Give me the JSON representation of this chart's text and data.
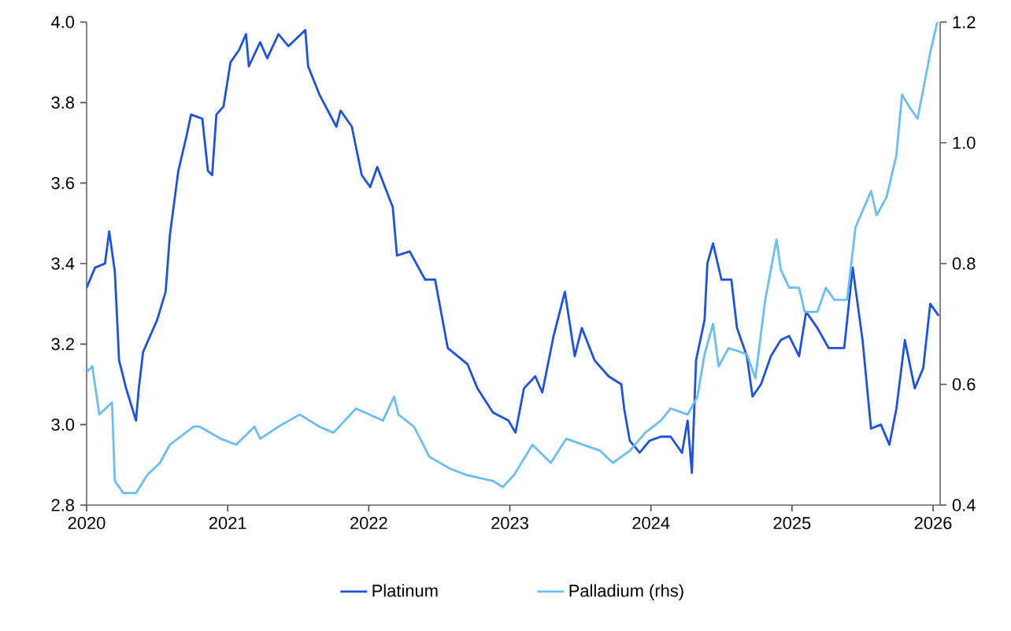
{
  "chart_data": {
    "type": "line",
    "legend": "bottom",
    "xlim": [
      2020,
      2026.05
    ],
    "xticks": [
      2020,
      2021,
      2022,
      2023,
      2024,
      2025,
      2026
    ],
    "ylim": [
      2.8,
      4.0
    ],
    "yticks": [
      2.8,
      {
        "value": 3,
        "label": "3.0"
      },
      3.2,
      3.4,
      3.6,
      3.8,
      {
        "value": 4,
        "label": "4.0"
      }
    ],
    "y2lim": [
      0.4,
      1.2
    ],
    "y2ticks": [
      0.4,
      0.6,
      0.8,
      {
        "value": 1,
        "label": "1.0"
      },
      1.2
    ],
    "series": [
      {
        "name": "Platinum",
        "color": "#1f52dc",
        "x": [
          2020.0,
          2020.06,
          2020.13,
          2020.16,
          2020.2,
          2020.23,
          2020.28,
          2020.35,
          2020.37,
          2020.4,
          2020.45,
          2020.5,
          2020.56,
          2020.59,
          2020.65,
          2020.71,
          2020.74,
          2020.82,
          2020.86,
          2020.89,
          2020.92,
          2020.97,
          2021.02,
          2021.08,
          2021.13,
          2021.15,
          2021.23,
          2021.28,
          2021.36,
          2021.43,
          2021.55,
          2021.57,
          2021.65,
          2021.77,
          2021.8,
          2021.88,
          2021.95,
          2022.01,
          2022.06,
          2022.17,
          2022.2,
          2022.29,
          2022.4,
          2022.47,
          2022.56,
          2022.7,
          2022.77,
          2022.88,
          2022.99,
          2023.04,
          2023.1,
          2023.18,
          2023.23,
          2023.31,
          2023.39,
          2023.46,
          2023.51,
          2023.6,
          2023.7,
          2023.79,
          2023.81,
          2023.85,
          2023.92,
          2023.99,
          2024.07,
          2024.14,
          2024.22,
          2024.26,
          2024.29,
          2024.32,
          2024.38,
          2024.4,
          2024.44,
          2024.5,
          2024.57,
          2024.61,
          2024.68,
          2024.72,
          2024.78,
          2024.85,
          2024.92,
          2024.98,
          2025.05,
          2025.1,
          2025.18,
          2025.26,
          2025.37,
          2025.43,
          2025.5,
          2025.56,
          2025.63,
          2025.69,
          2025.74,
          2025.8,
          2025.87,
          2025.93,
          2025.98,
          2026.04
        ],
        "values": [
          3.34,
          3.39,
          3.4,
          3.48,
          3.38,
          3.16,
          3.09,
          3.01,
          3.09,
          3.18,
          3.22,
          3.26,
          3.33,
          3.47,
          3.63,
          3.72,
          3.77,
          3.76,
          3.63,
          3.62,
          3.77,
          3.79,
          3.9,
          3.93,
          3.97,
          3.89,
          3.95,
          3.91,
          3.97,
          3.94,
          3.98,
          3.89,
          3.82,
          3.74,
          3.78,
          3.74,
          3.62,
          3.59,
          3.64,
          3.54,
          3.42,
          3.43,
          3.36,
          3.36,
          3.19,
          3.15,
          3.09,
          3.03,
          3.01,
          2.98,
          3.09,
          3.12,
          3.08,
          3.22,
          3.33,
          3.17,
          3.24,
          3.16,
          3.12,
          3.1,
          3.04,
          2.96,
          2.93,
          2.96,
          2.97,
          2.97,
          2.93,
          3.01,
          2.88,
          3.16,
          3.26,
          3.4,
          3.45,
          3.36,
          3.36,
          3.24,
          3.17,
          3.07,
          3.1,
          3.17,
          3.21,
          3.22,
          3.17,
          3.28,
          3.24,
          3.19,
          3.19,
          3.39,
          3.21,
          2.99,
          3.0,
          2.95,
          3.04,
          3.21,
          3.09,
          3.14,
          3.3,
          3.27
        ]
      },
      {
        "name": "Palladium (rhs)",
        "color": "#6bbdf5",
        "axis": "y2",
        "x": [
          2020.0,
          2020.04,
          2020.09,
          2020.18,
          2020.2,
          2020.26,
          2020.35,
          2020.43,
          2020.52,
          2020.59,
          2020.76,
          2020.8,
          2020.95,
          2021.06,
          2021.19,
          2021.23,
          2021.36,
          2021.51,
          2021.65,
          2021.75,
          2021.91,
          2022.1,
          2022.18,
          2022.21,
          2022.32,
          2022.43,
          2022.58,
          2022.69,
          2022.88,
          2022.95,
          2023.03,
          2023.16,
          2023.29,
          2023.4,
          2023.64,
          2023.73,
          2023.85,
          2023.96,
          2024.07,
          2024.14,
          2024.26,
          2024.33,
          2024.38,
          2024.44,
          2024.48,
          2024.55,
          2024.68,
          2024.74,
          2024.81,
          2024.89,
          2024.92,
          2024.98,
          2025.05,
          2025.09,
          2025.18,
          2025.24,
          2025.3,
          2025.39,
          2025.45,
          2025.56,
          2025.6,
          2025.67,
          2025.74,
          2025.78,
          2025.83,
          2025.89,
          2025.94,
          2025.98,
          2026.03
        ],
        "values": [
          0.62,
          0.63,
          0.55,
          0.57,
          0.44,
          0.42,
          0.42,
          0.45,
          0.47,
          0.5,
          0.53,
          0.53,
          0.51,
          0.5,
          0.53,
          0.51,
          0.53,
          0.55,
          0.53,
          0.52,
          0.56,
          0.54,
          0.58,
          0.55,
          0.53,
          0.48,
          0.46,
          0.45,
          0.44,
          0.43,
          0.45,
          0.5,
          0.47,
          0.51,
          0.49,
          0.47,
          0.49,
          0.52,
          0.54,
          0.56,
          0.55,
          0.58,
          0.65,
          0.7,
          0.63,
          0.66,
          0.65,
          0.61,
          0.74,
          0.84,
          0.79,
          0.76,
          0.76,
          0.72,
          0.72,
          0.76,
          0.74,
          0.74,
          0.86,
          0.92,
          0.88,
          0.91,
          0.98,
          1.08,
          1.06,
          1.04,
          1.1,
          1.15,
          1.2
        ]
      }
    ]
  }
}
